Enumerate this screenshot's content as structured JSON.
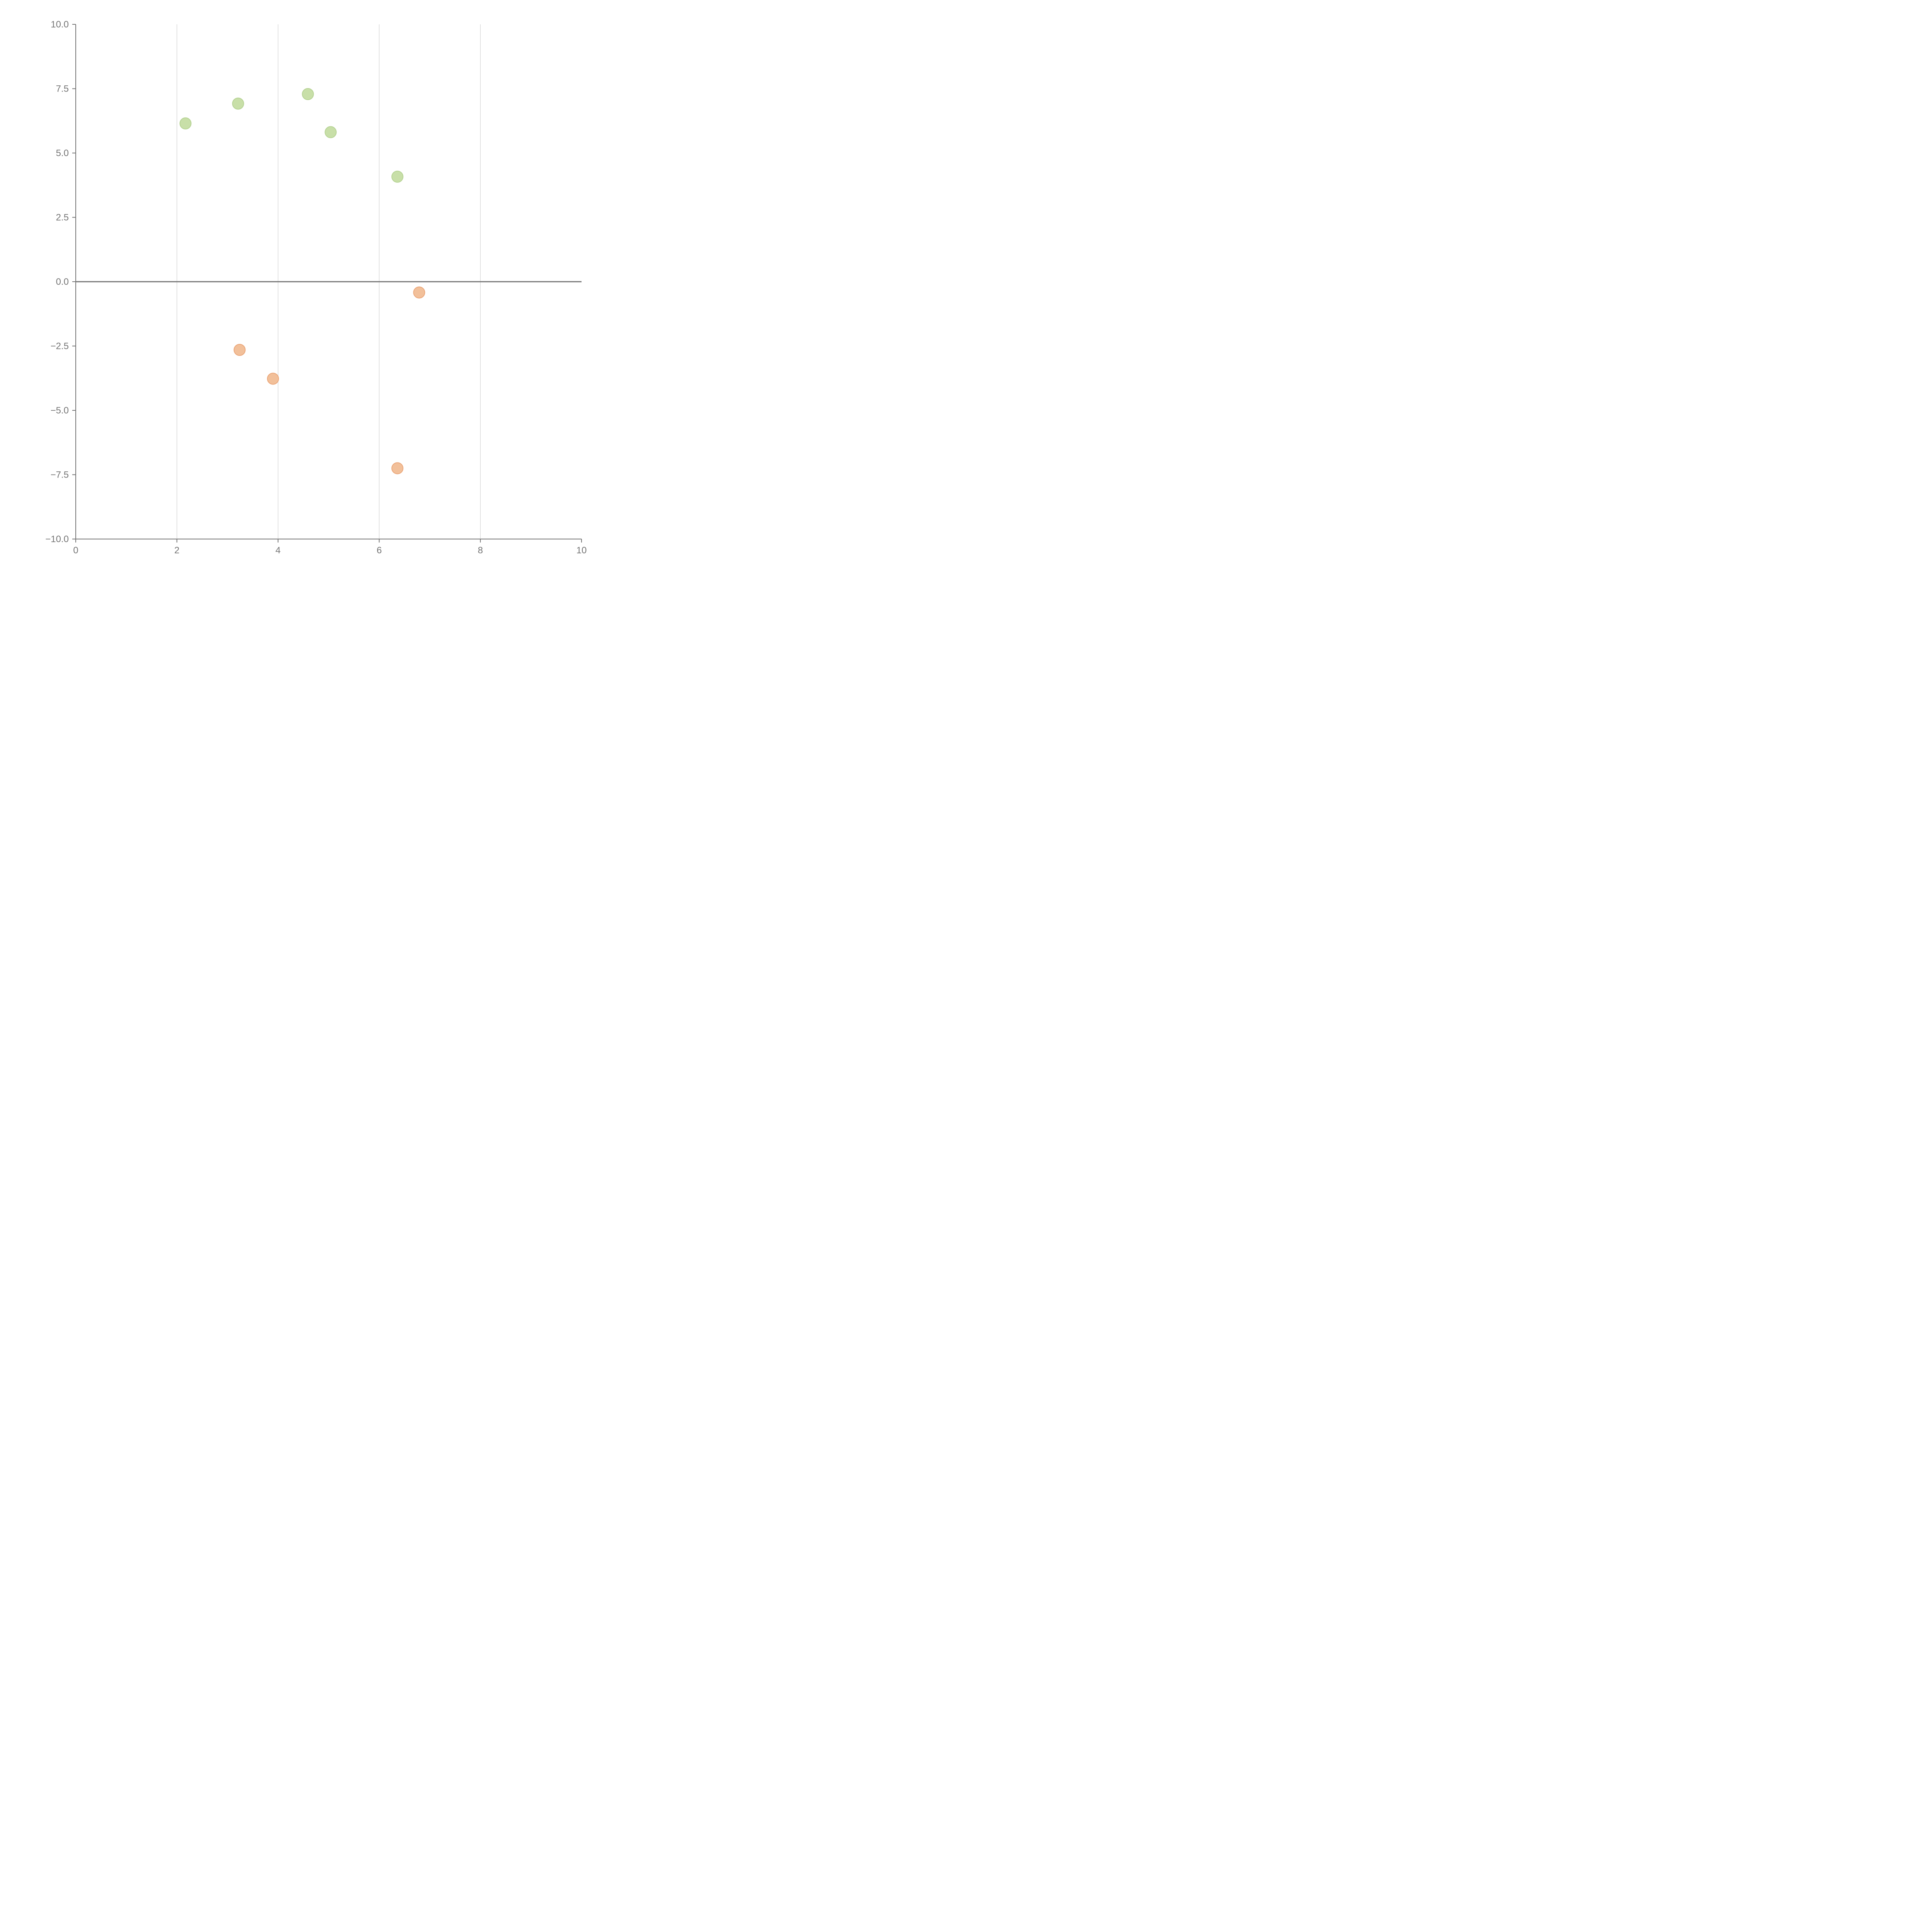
{
  "chart_data": {
    "type": "scatter",
    "title": "",
    "xlabel": "",
    "ylabel": "",
    "xlim": [
      0,
      10
    ],
    "ylim": [
      -10,
      10
    ],
    "x_ticks": [
      {
        "value": 0,
        "label": "0"
      },
      {
        "value": 2,
        "label": "2"
      },
      {
        "value": 4,
        "label": "4"
      },
      {
        "value": 6,
        "label": "6"
      },
      {
        "value": 8,
        "label": "8"
      },
      {
        "value": 10,
        "label": "10"
      }
    ],
    "y_ticks": [
      {
        "value": 10,
        "label": "10.0"
      },
      {
        "value": 7.5,
        "label": "7.5"
      },
      {
        "value": 5,
        "label": "5.0"
      },
      {
        "value": 2.5,
        "label": "2.5"
      },
      {
        "value": 0,
        "label": "0.0"
      },
      {
        "value": -2.5,
        "label": "−2.5"
      },
      {
        "value": -5,
        "label": "−5.0"
      },
      {
        "value": -7.5,
        "label": "−7.5"
      },
      {
        "value": -10,
        "label": "−10.0"
      }
    ],
    "grid": {
      "vertical": true,
      "horizontal": false
    },
    "zero_line": true,
    "series": [
      {
        "color": "#c8dfa8",
        "stroke": "#b6d394",
        "points": [
          {
            "x": 2.17,
            "y": 6.15
          },
          {
            "x": 3.21,
            "y": 6.92
          },
          {
            "x": 4.59,
            "y": 7.29
          },
          {
            "x": 5.04,
            "y": 5.81
          },
          {
            "x": 6.36,
            "y": 4.08
          }
        ]
      },
      {
        "color": "#f2c09a",
        "stroke": "#eba77a",
        "points": [
          {
            "x": 6.79,
            "y": -0.42
          },
          {
            "x": 3.24,
            "y": -2.65
          },
          {
            "x": 3.9,
            "y": -3.77
          },
          {
            "x": 6.36,
            "y": -7.25
          }
        ]
      }
    ]
  }
}
